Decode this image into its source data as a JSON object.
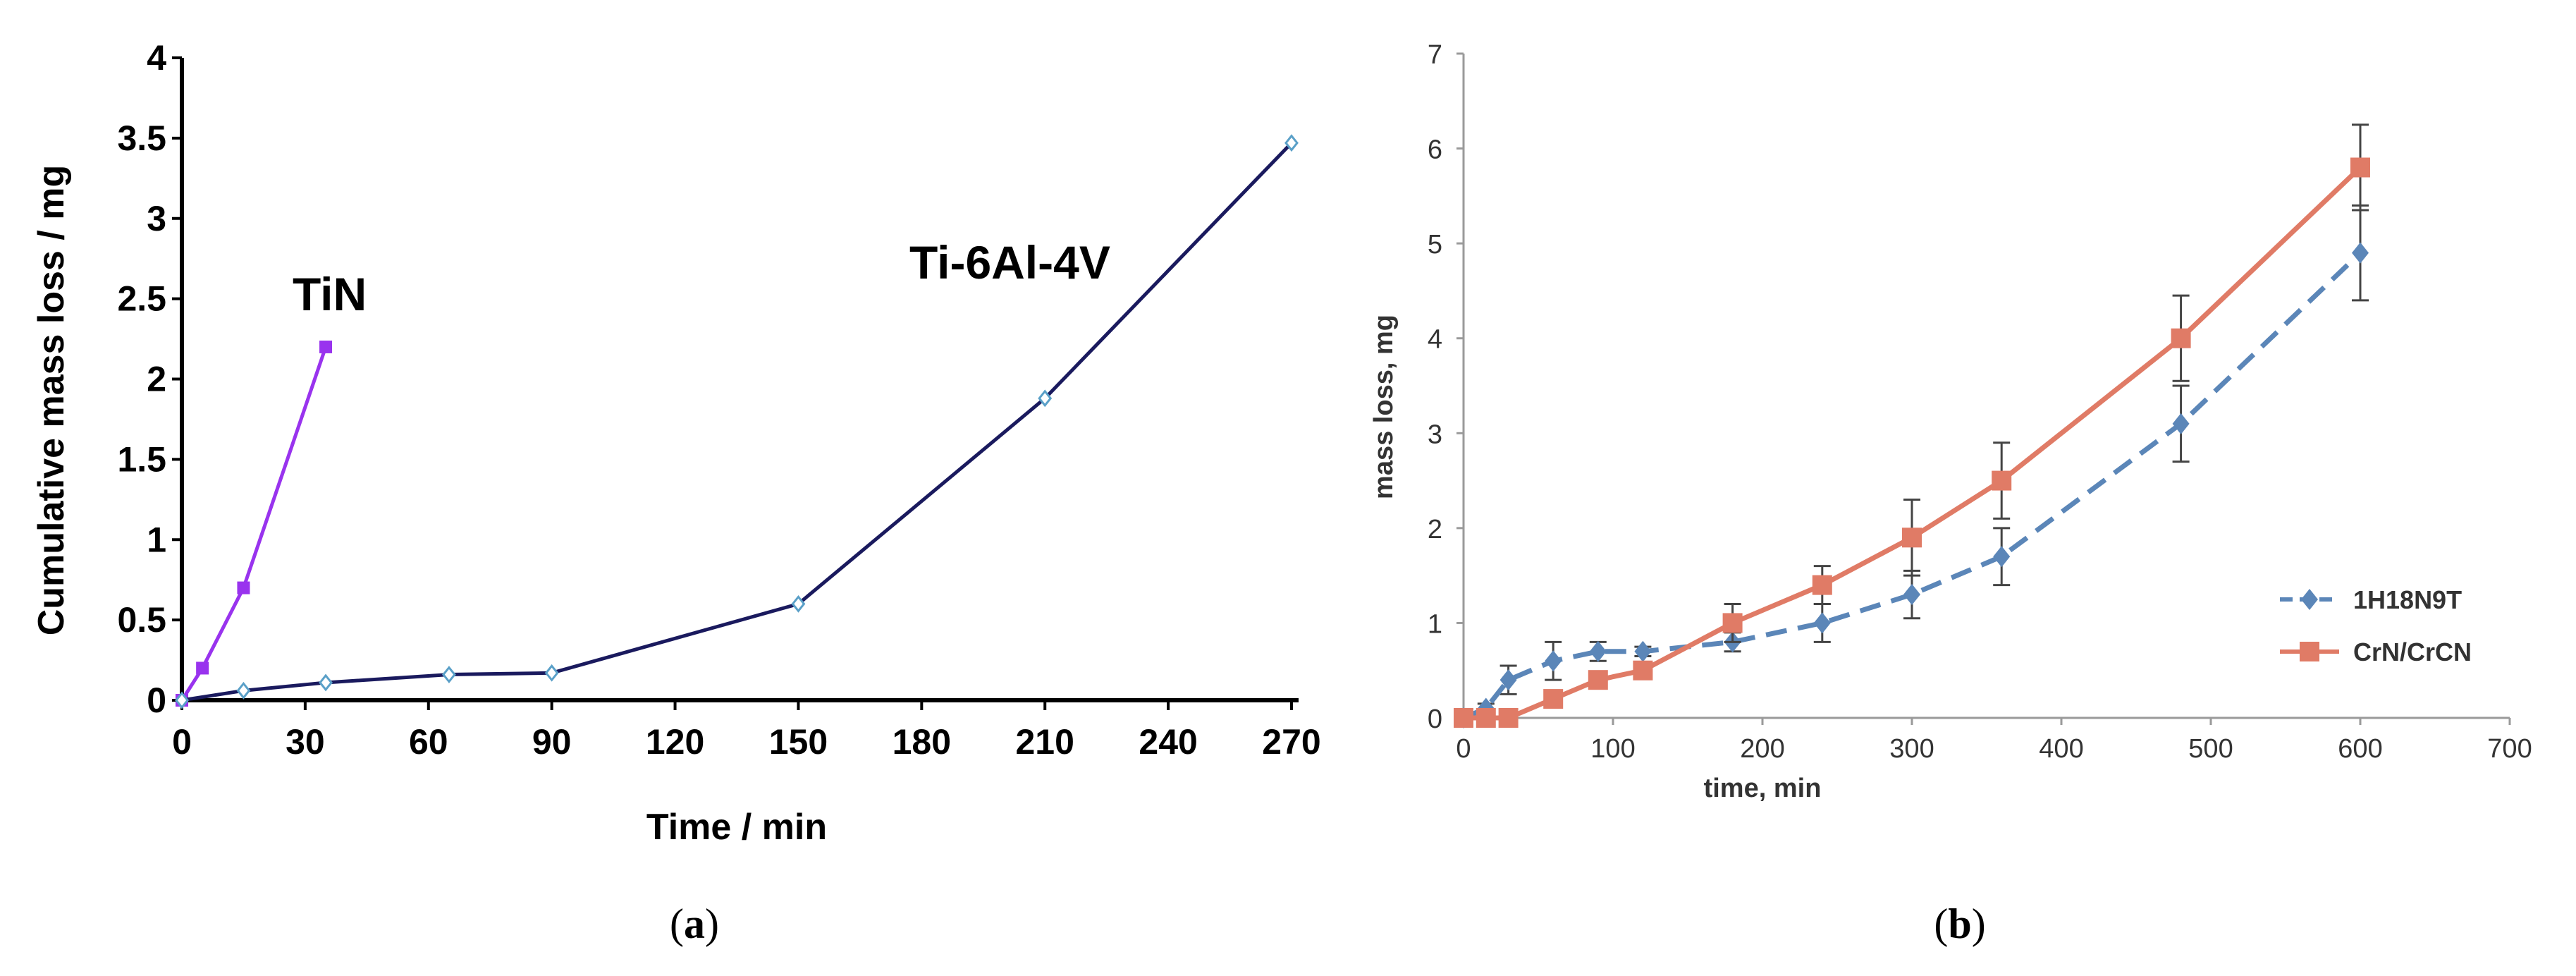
{
  "chart_data": [
    {
      "panel": "a",
      "caption_label": "a",
      "type": "line",
      "title": "",
      "xlabel": "Time / min",
      "ylabel": "Cumulative mass loss / mg",
      "xlim": [
        0,
        270
      ],
      "ylim": [
        0,
        4
      ],
      "x_ticks": [
        0,
        30,
        60,
        90,
        120,
        150,
        180,
        210,
        240,
        270
      ],
      "y_ticks": [
        0,
        0.5,
        1,
        1.5,
        2,
        2.5,
        3,
        3.5,
        4
      ],
      "y_tick_labels": [
        "0",
        "0.5",
        "1",
        "1.5",
        "2",
        "2.5",
        "3",
        "3.5",
        "4"
      ],
      "grid": false,
      "legend": "none (inline labels)",
      "series": [
        {
          "name": "TiN",
          "label": "TiN",
          "color": "#9933ee",
          "marker": "square",
          "x": [
            0,
            5,
            15,
            35
          ],
          "y": [
            0,
            0.2,
            0.7,
            2.2
          ]
        },
        {
          "name": "Ti-6Al-4V",
          "label": "Ti-6Al-4V",
          "color": "#1a1a5e",
          "marker": "open-diamond",
          "x": [
            0,
            15,
            35,
            65,
            90,
            150,
            210,
            270
          ],
          "y": [
            0,
            0.06,
            0.11,
            0.16,
            0.17,
            0.6,
            1.88,
            3.47
          ]
        }
      ]
    },
    {
      "panel": "b",
      "caption_label": "b",
      "type": "line",
      "title": "",
      "xlabel": "time, min",
      "ylabel": "mass loss, mg",
      "xlim": [
        0,
        700
      ],
      "ylim": [
        0,
        7
      ],
      "x_ticks": [
        0,
        100,
        200,
        300,
        400,
        500,
        600,
        700
      ],
      "y_ticks": [
        0,
        1,
        2,
        3,
        4,
        5,
        6,
        7
      ],
      "grid": false,
      "legend": "right, middle",
      "series": [
        {
          "name": "1H18N9T",
          "color": "#5b86b8",
          "marker": "diamond",
          "linestyle": "dashed",
          "x": [
            0,
            15,
            30,
            60,
            90,
            120,
            180,
            240,
            300,
            360,
            480,
            600
          ],
          "y": [
            0,
            0.1,
            0.4,
            0.6,
            0.7,
            0.7,
            0.8,
            1.0,
            1.3,
            1.7,
            3.1,
            4.9
          ],
          "err": [
            0,
            0.05,
            0.15,
            0.2,
            0.1,
            0.05,
            0.1,
            0.2,
            0.25,
            0.3,
            0.4,
            0.5
          ]
        },
        {
          "name": "CrN/CrCN",
          "color": "#e07b66",
          "marker": "square",
          "linestyle": "solid",
          "x": [
            0,
            15,
            30,
            60,
            90,
            120,
            180,
            240,
            300,
            360,
            480,
            600
          ],
          "y": [
            0,
            0,
            0,
            0.2,
            0.4,
            0.5,
            1.0,
            1.4,
            1.9,
            2.5,
            4.0,
            5.8
          ],
          "err": [
            0,
            0,
            0,
            0.05,
            0.05,
            0.05,
            0.2,
            0.2,
            0.4,
            0.4,
            0.45,
            0.45
          ]
        }
      ]
    }
  ]
}
